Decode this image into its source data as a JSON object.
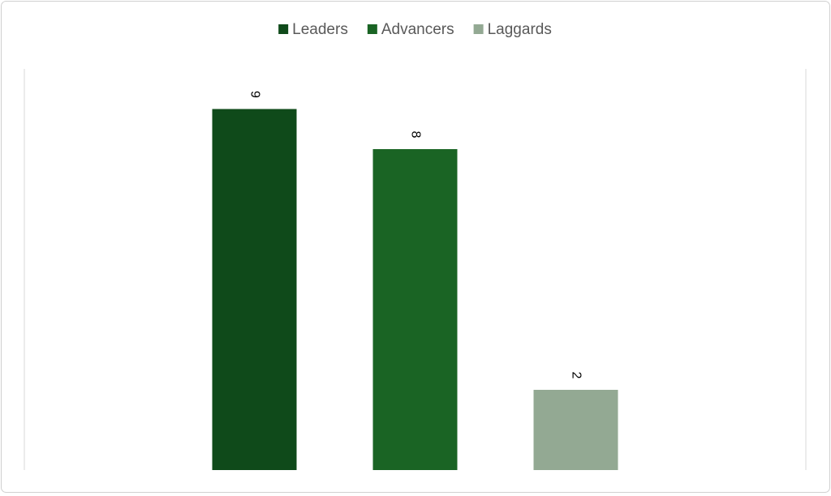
{
  "chart_data": {
    "type": "bar",
    "categories": [
      null
    ],
    "series": [
      {
        "name": "Leaders",
        "color": "#0f4a1a",
        "values": [
          9
        ]
      },
      {
        "name": "Advancers",
        "color": "#1a6424",
        "values": [
          8
        ]
      },
      {
        "name": "Laggards",
        "color": "#93a993",
        "values": [
          2
        ]
      }
    ],
    "ylim": [
      0,
      10
    ],
    "legend": "top"
  }
}
